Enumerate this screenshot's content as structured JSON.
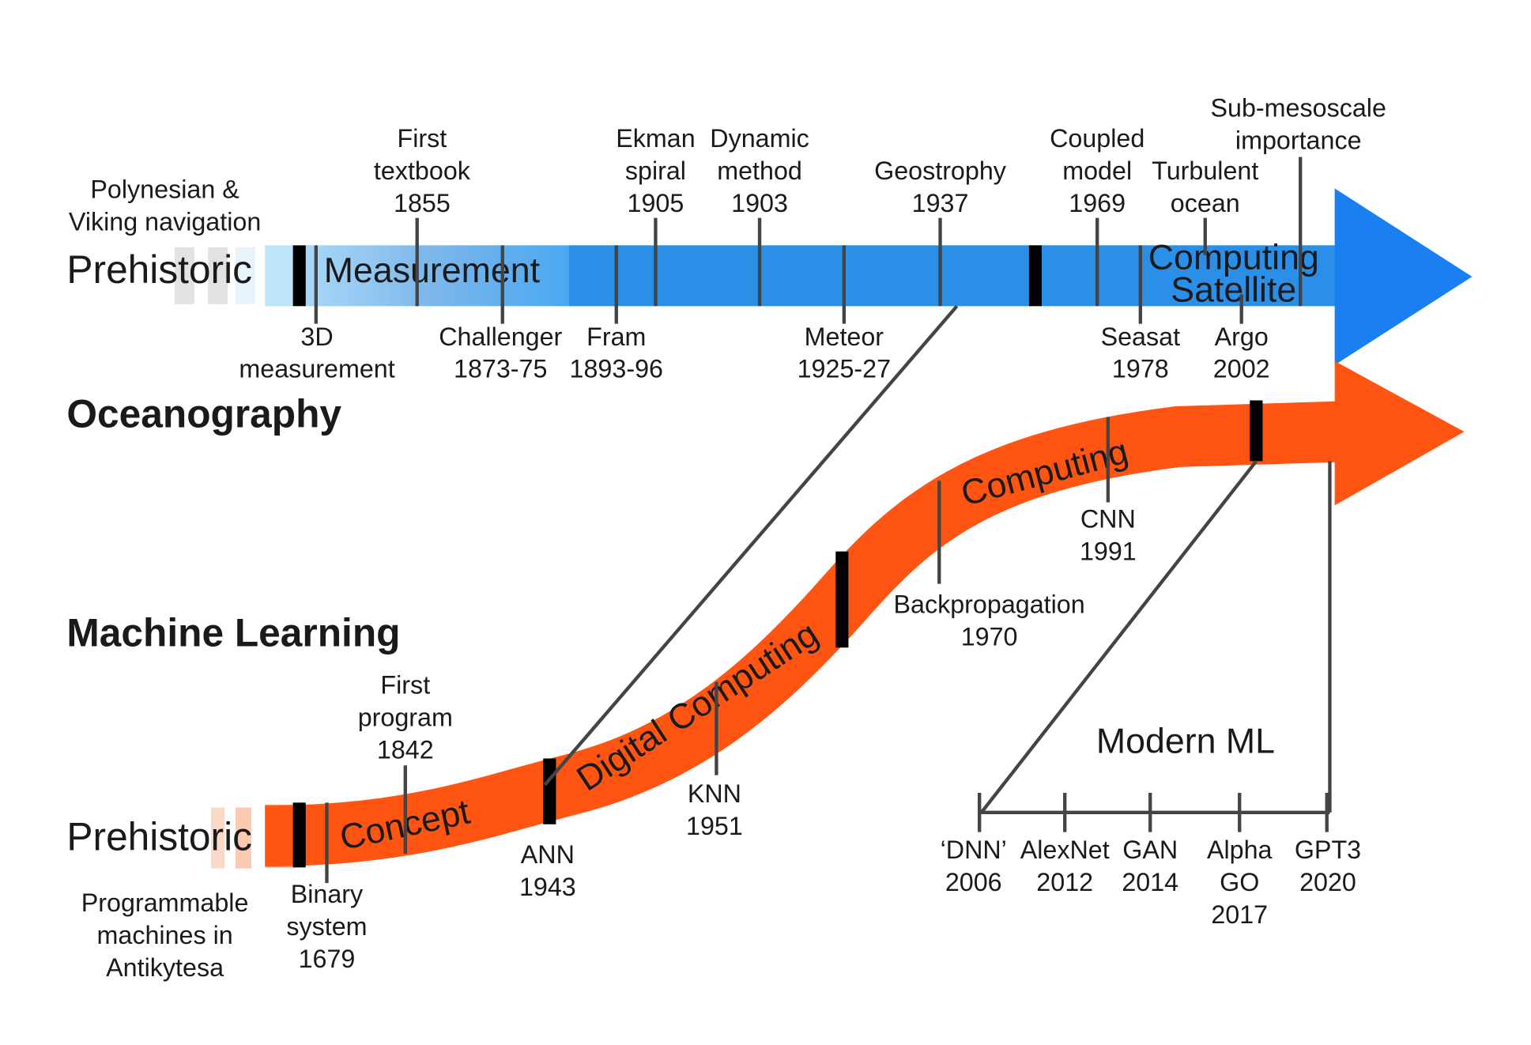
{
  "oceanography": {
    "title": "Oceanography",
    "start": "Prehistoric",
    "start_note": [
      "Polynesian &",
      "Viking navigation"
    ],
    "phases": [
      "Measurement",
      "Computing",
      "Satellite"
    ],
    "events": [
      {
        "lines": [
          "3D",
          "measurement"
        ]
      },
      {
        "lines": [
          "First",
          "textbook",
          "1855"
        ]
      },
      {
        "lines": [
          "Challenger",
          "1873-75"
        ]
      },
      {
        "lines": [
          "Fram",
          "1893-96"
        ]
      },
      {
        "lines": [
          "Ekman",
          "spiral",
          "1905"
        ]
      },
      {
        "lines": [
          "Dynamic",
          "method",
          "1903"
        ]
      },
      {
        "lines": [
          "Meteor",
          "1925-27"
        ]
      },
      {
        "lines": [
          "Geostrophy",
          "1937"
        ]
      },
      {
        "lines": [
          "Coupled",
          "model",
          "1969"
        ]
      },
      {
        "lines": [
          "Seasat",
          "1978"
        ]
      },
      {
        "lines": [
          "Turbulent",
          "ocean"
        ]
      },
      {
        "lines": [
          "Argo",
          "2002"
        ]
      },
      {
        "lines": [
          "Sub-mesoscale",
          "importance"
        ]
      }
    ]
  },
  "machine_learning": {
    "title": "Machine Learning",
    "start": "Prehistoric",
    "start_note": [
      "Programmable",
      "machines in",
      "Antikytesa"
    ],
    "phases": [
      "Concept",
      "Digital Computing",
      "Computing"
    ],
    "events": [
      {
        "lines": [
          "Binary",
          "system",
          "1679"
        ]
      },
      {
        "lines": [
          "First",
          "program",
          "1842"
        ]
      },
      {
        "lines": [
          "ANN",
          "1943"
        ]
      },
      {
        "lines": [
          "KNN",
          "1951"
        ]
      },
      {
        "lines": [
          "Backpropagation",
          "1970"
        ]
      },
      {
        "lines": [
          "CNN",
          "1991"
        ]
      }
    ]
  },
  "modern_ml": {
    "title": "Modern ML",
    "events": [
      {
        "lines": [
          "‘DNN’",
          "2006"
        ]
      },
      {
        "lines": [
          "AlexNet",
          "2012"
        ]
      },
      {
        "lines": [
          "GAN",
          "2014"
        ]
      },
      {
        "lines": [
          "Alpha",
          "GO",
          "2017"
        ]
      },
      {
        "lines": [
          "GPT3",
          "2020"
        ]
      }
    ]
  }
}
